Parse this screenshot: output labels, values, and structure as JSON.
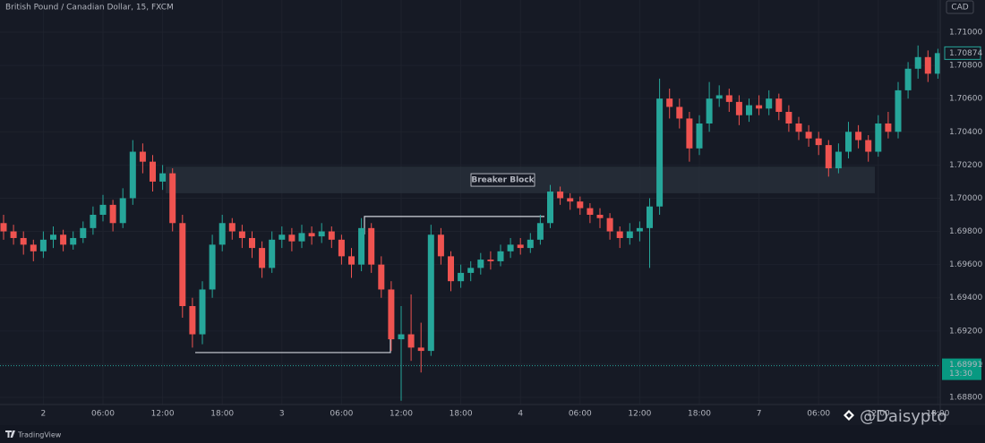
{
  "chart_data": {
    "type": "candlestick",
    "title": "British Pound / Canadian Dollar, 15, FXCM",
    "currency": "CAD",
    "up_color": "#26a69a",
    "down_color": "#ef5350",
    "grid": true,
    "ylim": [
      1.68757,
      1.71194
    ],
    "yticks": [
      {
        "value": 1.71,
        "label": "1.71000"
      },
      {
        "value": 1.708,
        "label": "1.70800"
      },
      {
        "value": 1.706,
        "label": "1.70600"
      },
      {
        "value": 1.704,
        "label": "1.70400"
      },
      {
        "value": 1.702,
        "label": "1.70200"
      },
      {
        "value": 1.7,
        "label": "1.70000"
      },
      {
        "value": 1.698,
        "label": "1.69800"
      },
      {
        "value": 1.696,
        "label": "1.69600"
      },
      {
        "value": 1.694,
        "label": "1.69400"
      },
      {
        "value": 1.692,
        "label": "1.69200"
      },
      {
        "value": 1.69,
        "label": "1.69000"
      },
      {
        "value": 1.688,
        "label": "1.68800"
      }
    ],
    "categories": [
      null,
      null,
      null,
      null,
      "2",
      null,
      null,
      null,
      null,
      null,
      "06:00",
      null,
      null,
      null,
      null,
      null,
      "12:00",
      null,
      null,
      null,
      null,
      null,
      "18:00",
      null,
      null,
      null,
      null,
      null,
      "3",
      null,
      null,
      null,
      null,
      null,
      "06:00",
      null,
      null,
      null,
      null,
      null,
      "12:00",
      null,
      null,
      null,
      null,
      null,
      "18:00",
      null,
      null,
      null,
      null,
      null,
      "4",
      null,
      null,
      null,
      null,
      null,
      "06:00",
      null,
      null,
      null,
      null,
      null,
      "12:00",
      null,
      null,
      null,
      null,
      null,
      "18:00",
      null,
      null,
      null,
      null,
      null,
      "7",
      null,
      null,
      null,
      null,
      null,
      "06:00",
      null,
      null,
      null,
      null,
      null,
      "12:00",
      null,
      null,
      null,
      null,
      null,
      "18:00"
    ],
    "candles": [
      [
        1.6985,
        1.699,
        1.6975,
        1.698
      ],
      [
        1.698,
        1.6984,
        1.6972,
        1.6976
      ],
      [
        1.6976,
        1.698,
        1.6966,
        1.6972
      ],
      [
        1.6972,
        1.6975,
        1.6962,
        1.6968
      ],
      [
        1.6968,
        1.698,
        1.6964,
        1.6975
      ],
      [
        1.6975,
        1.6983,
        1.697,
        1.6978
      ],
      [
        1.6978,
        1.6981,
        1.6968,
        1.6972
      ],
      [
        1.6972,
        1.698,
        1.6969,
        1.6976
      ],
      [
        1.6976,
        1.6986,
        1.6973,
        1.6982
      ],
      [
        1.6982,
        1.6995,
        1.6978,
        1.699
      ],
      [
        1.699,
        1.7002,
        1.6986,
        1.6996
      ],
      [
        1.6996,
        1.6999,
        1.698,
        1.6985
      ],
      [
        1.6985,
        1.7006,
        1.6982,
        1.7
      ],
      [
        1.7,
        1.7035,
        1.6996,
        1.7028
      ],
      [
        1.7028,
        1.7033,
        1.7015,
        1.7022
      ],
      [
        1.7022,
        1.7026,
        1.7004,
        1.701
      ],
      [
        1.701,
        1.702,
        1.7005,
        1.7015
      ],
      [
        1.7015,
        1.7018,
        1.698,
        1.6985
      ],
      [
        1.6985,
        1.699,
        1.6928,
        1.6935
      ],
      [
        1.6935,
        1.694,
        1.691,
        1.6918
      ],
      [
        1.6918,
        1.695,
        1.6912,
        1.6945
      ],
      [
        1.6945,
        1.6978,
        1.694,
        1.6972
      ],
      [
        1.6972,
        1.699,
        1.6968,
        1.6985
      ],
      [
        1.6985,
        1.6988,
        1.6975,
        1.698
      ],
      [
        1.698,
        1.6984,
        1.697,
        1.6976
      ],
      [
        1.6976,
        1.698,
        1.6964,
        1.697
      ],
      [
        1.697,
        1.6974,
        1.6952,
        1.6958
      ],
      [
        1.6958,
        1.698,
        1.6955,
        1.6975
      ],
      [
        1.6975,
        1.6983,
        1.697,
        1.6978
      ],
      [
        1.6978,
        1.6982,
        1.6968,
        1.6974
      ],
      [
        1.6974,
        1.6984,
        1.697,
        1.6979
      ],
      [
        1.6979,
        1.6983,
        1.6972,
        1.6977
      ],
      [
        1.6977,
        1.6985,
        1.6973,
        1.698
      ],
      [
        1.698,
        1.6983,
        1.697,
        1.6975
      ],
      [
        1.6975,
        1.6978,
        1.696,
        1.6965
      ],
      [
        1.6965,
        1.697,
        1.6952,
        1.696
      ],
      [
        1.696,
        1.6988,
        1.6956,
        1.6982
      ],
      [
        1.6982,
        1.6985,
        1.6955,
        1.696
      ],
      [
        1.696,
        1.6965,
        1.694,
        1.6945
      ],
      [
        1.6945,
        1.695,
        1.6908,
        1.6915
      ],
      [
        1.6915,
        1.6935,
        1.6878,
        1.6918
      ],
      [
        1.6918,
        1.6942,
        1.6902,
        1.691
      ],
      [
        1.691,
        1.6925,
        1.6895,
        1.6908
      ],
      [
        1.6908,
        1.6984,
        1.6905,
        1.6978
      ],
      [
        1.6978,
        1.6982,
        1.696,
        1.6965
      ],
      [
        1.6965,
        1.6968,
        1.6944,
        1.695
      ],
      [
        1.695,
        1.696,
        1.6946,
        1.6955
      ],
      [
        1.6955,
        1.6962,
        1.695,
        1.6958
      ],
      [
        1.6958,
        1.6967,
        1.6954,
        1.6963
      ],
      [
        1.6963,
        1.6968,
        1.6957,
        1.6962
      ],
      [
        1.6962,
        1.6972,
        1.6959,
        1.6968
      ],
      [
        1.6968,
        1.6976,
        1.6964,
        1.6972
      ],
      [
        1.6972,
        1.6976,
        1.6966,
        1.697
      ],
      [
        1.697,
        1.6979,
        1.6967,
        1.6975
      ],
      [
        1.6975,
        1.699,
        1.6972,
        1.6985
      ],
      [
        1.6985,
        1.7008,
        1.6982,
        1.7004
      ],
      [
        1.7004,
        1.7007,
        1.6996,
        1.7
      ],
      [
        1.7,
        1.7003,
        1.6993,
        1.6998
      ],
      [
        1.6998,
        1.7001,
        1.699,
        1.6994
      ],
      [
        1.6994,
        1.6997,
        1.6985,
        1.699
      ],
      [
        1.699,
        1.6994,
        1.6982,
        1.6988
      ],
      [
        1.6988,
        1.6991,
        1.6975,
        1.698
      ],
      [
        1.698,
        1.6983,
        1.697,
        1.6976
      ],
      [
        1.6976,
        1.6985,
        1.6972,
        1.698
      ],
      [
        1.698,
        1.6986,
        1.6974,
        1.6982
      ],
      [
        1.6982,
        1.7,
        1.6958,
        1.6995
      ],
      [
        1.6995,
        1.7072,
        1.699,
        1.706
      ],
      [
        1.706,
        1.7066,
        1.7048,
        1.7055
      ],
      [
        1.7055,
        1.706,
        1.7042,
        1.7048
      ],
      [
        1.7048,
        1.7052,
        1.7022,
        1.703
      ],
      [
        1.703,
        1.705,
        1.7026,
        1.7045
      ],
      [
        1.7045,
        1.707,
        1.704,
        1.706
      ],
      [
        1.706,
        1.7068,
        1.7055,
        1.7062
      ],
      [
        1.7062,
        1.7066,
        1.7052,
        1.7058
      ],
      [
        1.7058,
        1.7062,
        1.7044,
        1.705
      ],
      [
        1.705,
        1.706,
        1.7046,
        1.7056
      ],
      [
        1.7056,
        1.7062,
        1.705,
        1.7054
      ],
      [
        1.7054,
        1.7065,
        1.705,
        1.706
      ],
      [
        1.706,
        1.7063,
        1.7047,
        1.7052
      ],
      [
        1.7052,
        1.7056,
        1.704,
        1.7045
      ],
      [
        1.7045,
        1.7049,
        1.7035,
        1.704
      ],
      [
        1.704,
        1.7044,
        1.7031,
        1.7036
      ],
      [
        1.7036,
        1.704,
        1.7026,
        1.7032
      ],
      [
        1.7032,
        1.7035,
        1.7013,
        1.7018
      ],
      [
        1.7018,
        1.7033,
        1.7015,
        1.7028
      ],
      [
        1.7028,
        1.7046,
        1.7024,
        1.704
      ],
      [
        1.704,
        1.7044,
        1.703,
        1.7035
      ],
      [
        1.7035,
        1.7038,
        1.7022,
        1.7028
      ],
      [
        1.7028,
        1.705,
        1.7025,
        1.7045
      ],
      [
        1.7045,
        1.7052,
        1.7036,
        1.704
      ],
      [
        1.704,
        1.707,
        1.7036,
        1.7065
      ],
      [
        1.7065,
        1.7082,
        1.706,
        1.7078
      ],
      [
        1.7078,
        1.7092,
        1.7072,
        1.7085
      ],
      [
        1.7085,
        1.7089,
        1.707,
        1.7075
      ],
      [
        1.7075,
        1.709,
        1.7072,
        1.70874
      ]
    ],
    "zone": {
      "label": "Breaker Block",
      "range": [
        1.7003,
        1.7019
      ]
    },
    "levels": [
      1.6907,
      1.6989
    ],
    "last_price": {
      "value": 1.70874,
      "label": "1.70874"
    },
    "price_line": {
      "value": 1.68991,
      "label": "1.68991",
      "time": "13:30"
    },
    "brand": "TradingView",
    "watermark": "@Daisypto"
  }
}
